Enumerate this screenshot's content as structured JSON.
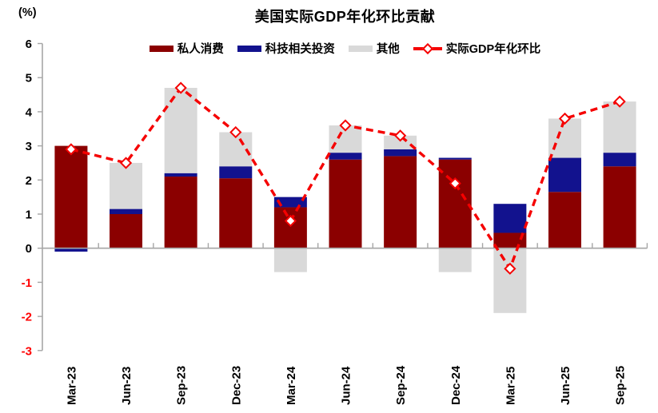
{
  "unit_label": "(%)",
  "colors": {
    "private_consumption": "#8B0000",
    "tech_investment": "#12128E",
    "other": "#D9D9D9",
    "gdp_line": "#F50000",
    "axis": "#A6A6A6",
    "negative_tick_label": "#FF0000",
    "tick_label": "#000000"
  },
  "chart_data": {
    "type": "bar+line",
    "title": "美国实际GDP年化环比贡献",
    "unit": "%",
    "grid": false,
    "legend_position": "top",
    "stacked": true,
    "ylim": [
      -3,
      6
    ],
    "y_ticks": [
      -3,
      -2,
      -1,
      0,
      1,
      2,
      3,
      4,
      5,
      6
    ],
    "categories": [
      "Mar-23",
      "Jun-23",
      "Sep-23",
      "Dec-23",
      "Mar-24",
      "Jun-24",
      "Sep-24",
      "Dec-24",
      "Mar-25",
      "Jun-25",
      "Sep-25"
    ],
    "series": [
      {
        "name": "私人消费",
        "type": "bar",
        "color": "#8B0000",
        "values": [
          3.0,
          1.0,
          2.1,
          2.05,
          1.2,
          2.6,
          2.7,
          2.6,
          0.45,
          1.65,
          2.4
        ]
      },
      {
        "name": "科技相关投资",
        "type": "bar",
        "color": "#12128E",
        "values": [
          -0.1,
          0.15,
          0.1,
          0.35,
          0.3,
          0.2,
          0.2,
          0.05,
          0.85,
          1.0,
          0.4
        ]
      },
      {
        "name": "其他",
        "type": "bar",
        "color": "#D9D9D9",
        "values": [
          0.0,
          1.35,
          2.5,
          1.0,
          -0.7,
          0.8,
          0.4,
          -0.7,
          -1.9,
          1.15,
          1.5
        ]
      },
      {
        "name": "实际GDP年化环比",
        "type": "line",
        "dashed": true,
        "marker": "open-diamond",
        "color": "#F50000",
        "values": [
          2.9,
          2.5,
          4.7,
          3.4,
          0.8,
          3.6,
          3.3,
          1.9,
          -0.6,
          3.8,
          4.3
        ]
      }
    ]
  }
}
